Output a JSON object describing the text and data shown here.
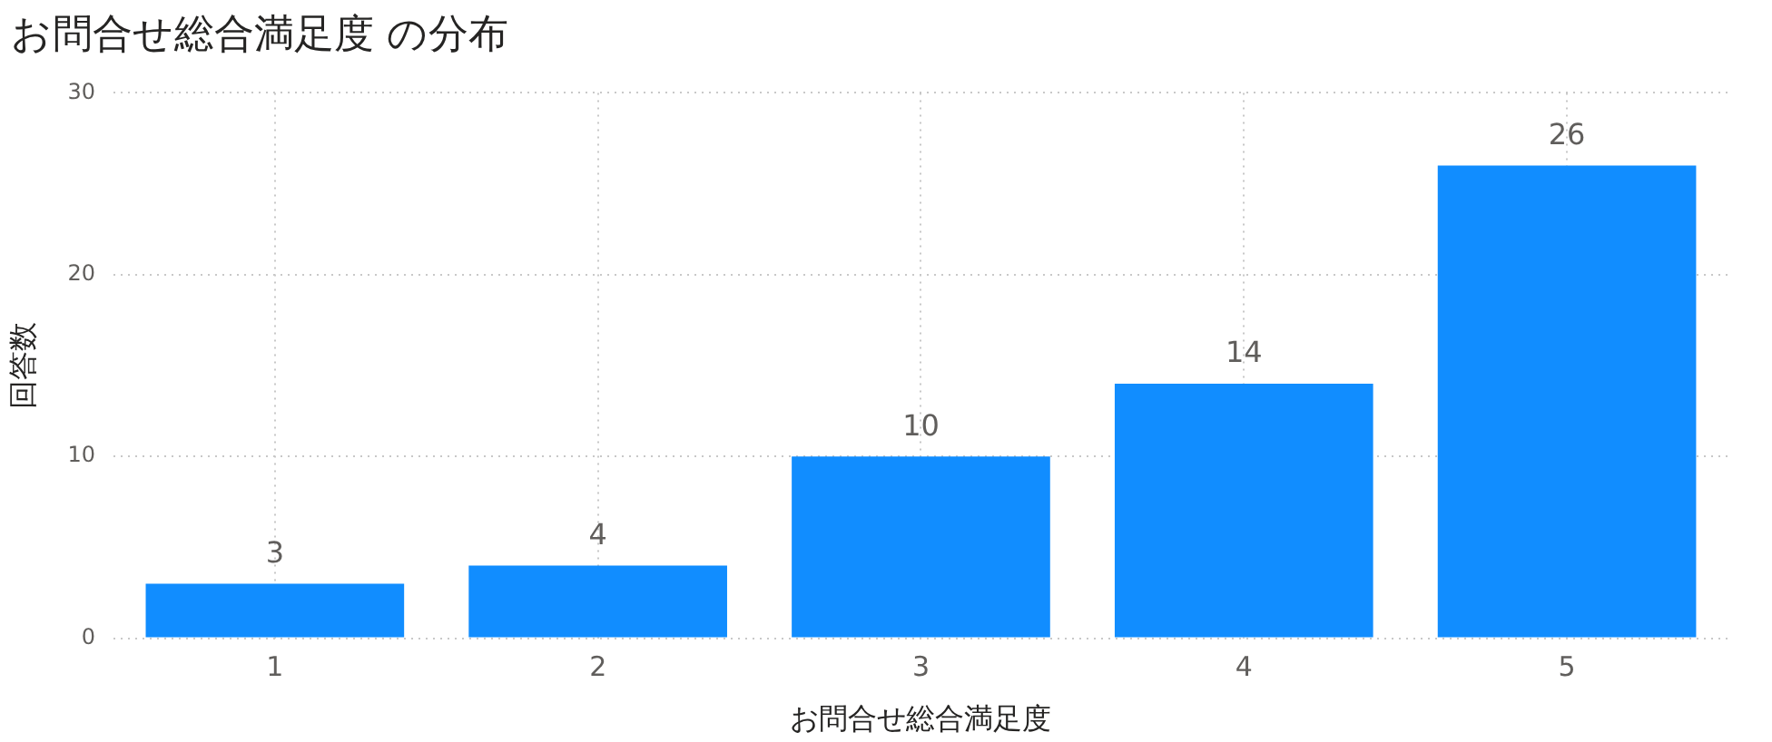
{
  "chart_data": {
    "type": "bar",
    "title": "お問合せ総合満足度 の分布",
    "xlabel": "お問合せ総合満足度",
    "ylabel": "回答数",
    "categories": [
      "1",
      "2",
      "3",
      "4",
      "5"
    ],
    "values": [
      3,
      4,
      10,
      14,
      26
    ],
    "color": "#118dff",
    "ylim": [
      0,
      30
    ],
    "yticks": [
      0,
      10,
      20,
      30
    ],
    "grid": true,
    "data_labels": true
  }
}
